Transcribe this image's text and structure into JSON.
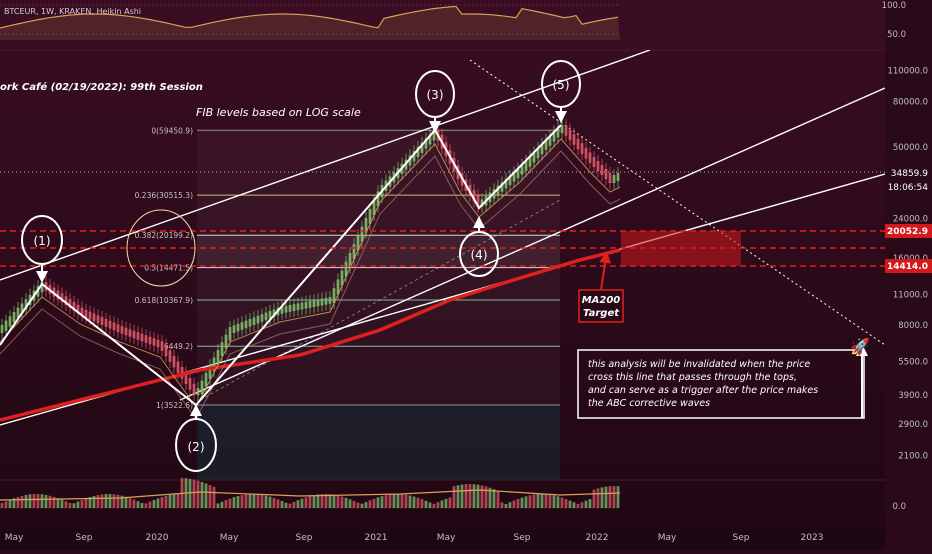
{
  "header": {
    "symbol_line": "BTCEUR, 1W, KRAKEN, Heikin Ashi",
    "session_title": "ork Café (02/19/2022): 99th Session"
  },
  "annotations": {
    "fib_title": "FIB levels based on LOG scale",
    "ma200": "MA200",
    "target": "Target",
    "note_lines": [
      "this analysis will be invalidated when the price",
      "cross this line that passes through the tops,",
      "and can serve as a trigger after the price makes",
      "the ABC corrective waves"
    ],
    "waves": [
      "(1)",
      "(2)",
      "(3)",
      "(4)",
      "(5)"
    ]
  },
  "price_badges": {
    "current": "34859.9",
    "countdown": "18:06:54",
    "upper": "20052.9",
    "lower": "14414.0"
  },
  "colors": {
    "background": "#2a0a18",
    "ma200": "#e0201c",
    "fib": "#9fb8a8",
    "badge_red": "#d3191c",
    "candle_up": "#7fbf6f",
    "candle_down": "#e05a6a"
  },
  "chart_data": {
    "type": "line",
    "scale": "log",
    "ylim": [
      2000,
      120000
    ],
    "y_ticks": [
      "110000.0",
      "80000.0",
      "50000.0",
      "24000.0",
      "16000.0",
      "11000.0",
      "8000.0",
      "5500.0",
      "3900.0",
      "2900.0",
      "2100.0"
    ],
    "x_ticks": [
      "May",
      "Sep",
      "2020",
      "May",
      "Sep",
      "2021",
      "May",
      "Sep",
      "2022",
      "May",
      "Sep",
      "2023"
    ],
    "fib_levels": [
      {
        "label": "0(59450.9)",
        "value": 59450.9
      },
      {
        "label": "0.236(30515.3)",
        "value": 30515.3
      },
      {
        "label": "0.382(20199.2)",
        "value": 20199.2
      },
      {
        "label": "0.5(14471.5)",
        "value": 14471.5
      },
      {
        "label": "0.618(10367.9)",
        "value": 10367.9
      },
      {
        "label": "(6449.2)",
        "value": 6449.2
      },
      {
        "label": "1(3522.6)",
        "value": 3522.6
      }
    ],
    "oscillator_ticks": [
      "100.0",
      "50.0"
    ],
    "volume_ticks": [
      "0.0"
    ]
  }
}
